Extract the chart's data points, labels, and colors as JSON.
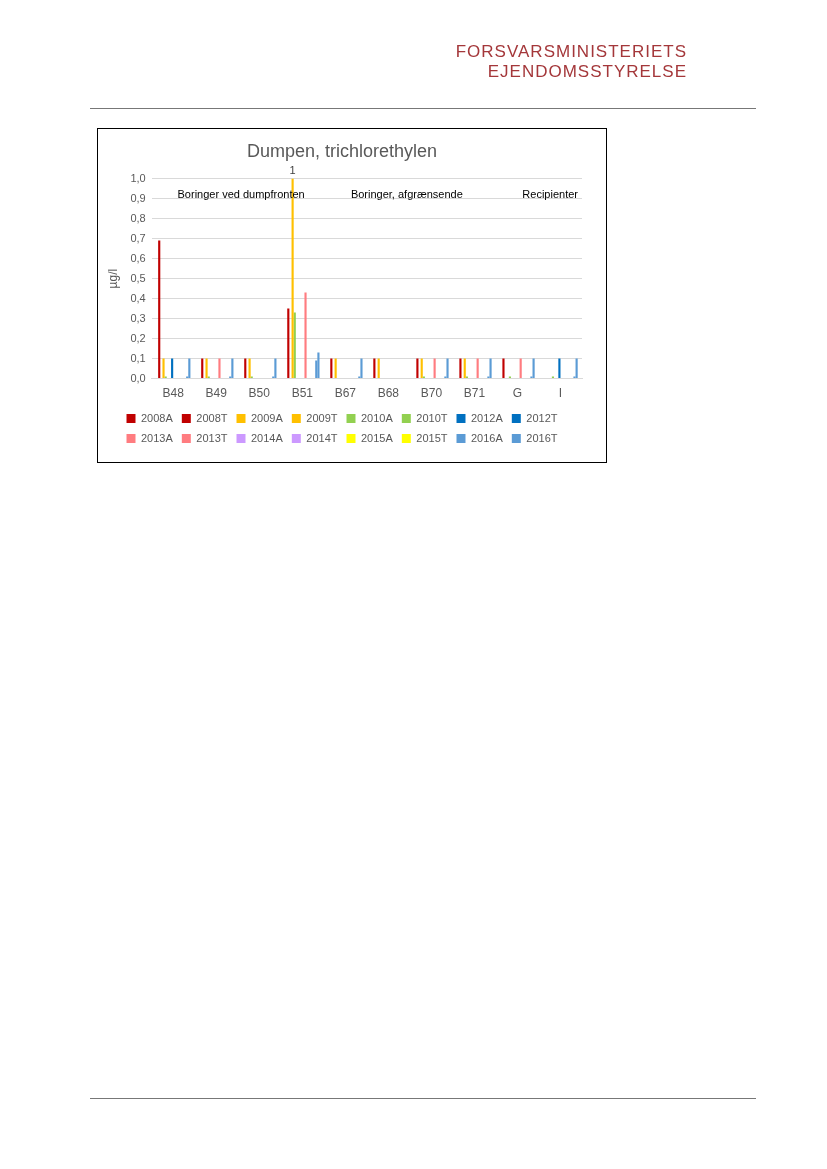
{
  "chart_data": {
    "type": "bar",
    "title": "Dumpen, trichlorethylen",
    "ylabel": "µg/l",
    "categories": [
      "B48",
      "B49",
      "B50",
      "B51",
      "B67",
      "B68",
      "B70",
      "B71",
      "G",
      "I"
    ],
    "ylim": [
      0,
      1
    ],
    "yticks": [
      {
        "value": 0,
        "label": "0,0"
      },
      {
        "value": 0.1,
        "label": "0,1"
      },
      {
        "value": 0.2,
        "label": "0,2"
      },
      {
        "value": 0.3,
        "label": "0,3"
      },
      {
        "value": 0.4,
        "label": "0,4"
      },
      {
        "value": 0.5,
        "label": "0,5"
      },
      {
        "value": 0.6,
        "label": "0,6"
      },
      {
        "value": 0.7,
        "label": "0,7"
      },
      {
        "value": 0.8,
        "label": "0,8"
      },
      {
        "value": 0.9,
        "label": "0,9"
      },
      {
        "value": 1,
        "label": "1,0"
      }
    ],
    "grid": "y",
    "legend": "bottom",
    "series": [
      {
        "name": "2008A",
        "color": "#c00000",
        "values": [
          null,
          null,
          null,
          null,
          null,
          null,
          null,
          null,
          null,
          null
        ]
      },
      {
        "name": "2008T",
        "color": "#c00000",
        "values": [
          0.69,
          0.1,
          0.1,
          0.35,
          0.1,
          0.1,
          0.1,
          0.1,
          0.1,
          null
        ]
      },
      {
        "name": "2009A",
        "color": "#ffc000",
        "values": [
          null,
          null,
          null,
          null,
          null,
          null,
          null,
          null,
          null,
          null
        ]
      },
      {
        "name": "2009T",
        "color": "#ffc000",
        "values": [
          0.1,
          0.1,
          0.1,
          1,
          0.1,
          0.1,
          0.1,
          0.1,
          null,
          null
        ],
        "value_labels": [
          null,
          null,
          null,
          "1",
          null,
          null,
          null,
          null,
          null,
          null
        ]
      },
      {
        "name": "2010A",
        "color": "#92d050",
        "values": [
          0.01,
          0.01,
          0.01,
          0.33,
          null,
          null,
          0.01,
          0.01,
          0.01,
          0.01
        ]
      },
      {
        "name": "2010T",
        "color": "#92d050",
        "values": [
          null,
          null,
          null,
          null,
          null,
          null,
          null,
          null,
          null,
          null
        ]
      },
      {
        "name": "2012A",
        "color": "#0070c0",
        "values": [
          null,
          null,
          null,
          null,
          null,
          null,
          null,
          null,
          null,
          null
        ]
      },
      {
        "name": "2012T",
        "color": "#0070c0",
        "values": [
          0.1,
          null,
          null,
          null,
          null,
          null,
          null,
          null,
          null,
          0.1
        ]
      },
      {
        "name": "2013A",
        "color": "#ff7c80",
        "values": [
          null,
          null,
          null,
          null,
          null,
          null,
          null,
          null,
          null,
          null
        ]
      },
      {
        "name": "2013T",
        "color": "#ff7c80",
        "values": [
          null,
          0.1,
          null,
          0.43,
          null,
          null,
          0.1,
          0.1,
          0.1,
          null
        ]
      },
      {
        "name": "2014A",
        "color": "#cc99ff",
        "values": [
          null,
          null,
          null,
          null,
          null,
          null,
          null,
          null,
          null,
          null
        ]
      },
      {
        "name": "2014T",
        "color": "#cc99ff",
        "values": [
          null,
          null,
          null,
          null,
          null,
          null,
          null,
          null,
          null,
          null
        ]
      },
      {
        "name": "2015A",
        "color": "#ffff00",
        "values": [
          null,
          null,
          null,
          null,
          null,
          null,
          null,
          null,
          null,
          null
        ]
      },
      {
        "name": "2015T",
        "color": "#ffff00",
        "values": [
          null,
          null,
          null,
          null,
          null,
          null,
          null,
          null,
          null,
          null
        ]
      },
      {
        "name": "2016A",
        "color": "#5b9bd5",
        "values": [
          0.01,
          0.01,
          0.01,
          0.09,
          0.01,
          null,
          0.01,
          0.01,
          0.01,
          0.01
        ]
      },
      {
        "name": "2016T",
        "color": "#5b9bd5",
        "values": [
          0.1,
          0.1,
          0.1,
          0.13,
          0.1,
          null,
          0.1,
          0.1,
          0.1,
          0.1
        ]
      }
    ],
    "annotations": [
      "FORSVARSMINISTERIETS EJENDOMSSTYRELSE",
      "Boringer ved dumpfronten",
      "Boringer, afgrænsende",
      "Recipienter"
    ]
  }
}
